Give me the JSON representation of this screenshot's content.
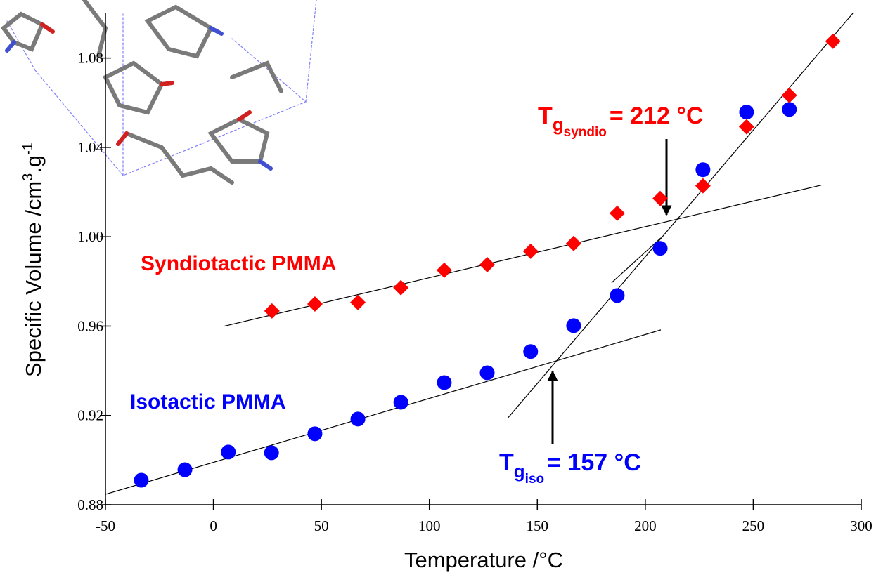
{
  "chart_data": {
    "type": "scatter",
    "x_label": "Temperature /°C",
    "y_label": {
      "main": "Specific Volume /cm",
      "sup1": "3",
      "mid": ".g",
      "sup2": "-1"
    },
    "xlim": [
      -50,
      300
    ],
    "xticks": [
      -50,
      0,
      50,
      100,
      150,
      200,
      250,
      300
    ],
    "ylim": [
      0.88,
      1.1
    ],
    "yticks": [
      0.88,
      0.92,
      0.96,
      {
        "value": 1,
        "label": "1.00"
      },
      1.04,
      1.08
    ],
    "series": [
      {
        "name": "Isotactic PMMA",
        "color": "#0000ff",
        "marker": "circle",
        "x": [
          -33.4,
          -13.2,
          6.9,
          26.9,
          47.0,
          66.9,
          86.8,
          106.9,
          126.8,
          146.9,
          166.8,
          187.0,
          206.9,
          226.7,
          246.9,
          266.7
        ],
        "values": [
          0.891,
          0.8957,
          0.9036,
          0.9033,
          0.9118,
          0.9184,
          0.9259,
          0.9347,
          0.9391,
          0.9486,
          0.9602,
          0.9737,
          0.9948,
          1.03,
          1.0558,
          1.057
        ]
      },
      {
        "name": "Syndiotactic PMMA",
        "color": "#ff0000",
        "marker": "diamond",
        "x": [
          27.1,
          47.0,
          66.9,
          86.8,
          106.9,
          126.8,
          146.9,
          166.8,
          187.0,
          206.9,
          226.7,
          246.9,
          266.7,
          286.9
        ],
        "values": [
          0.9668,
          0.9699,
          0.9706,
          0.9772,
          0.985,
          0.9875,
          0.9935,
          0.997,
          1.0105,
          1.0171,
          1.0228,
          1.0492,
          1.0633,
          1.0875
        ]
      }
    ],
    "fit_lines": [
      {
        "x": [
          -50,
          207.2
        ],
        "values": [
          0.8847,
          0.9583
        ]
      },
      {
        "x": [
          136.2,
          296.1
        ],
        "values": [
          0.9187,
          1.1
        ]
      },
      {
        "x": [
          4.7,
          281.5
        ],
        "values": [
          0.9599,
          1.0231
        ]
      },
      {
        "x": [
          184.4,
          207.2
        ],
        "values": [
          0.9794,
          0.9995
        ]
      }
    ],
    "annotations": [
      {
        "t": "T",
        "sub": "g",
        "subsub": "syndio",
        "rest": "= 212 °C",
        "color": "#ff0000"
      },
      {
        "t": "T",
        "sub": "g",
        "subsub": "iso",
        "rest": "= 157 °C",
        "color": "#0000ff"
      }
    ]
  }
}
